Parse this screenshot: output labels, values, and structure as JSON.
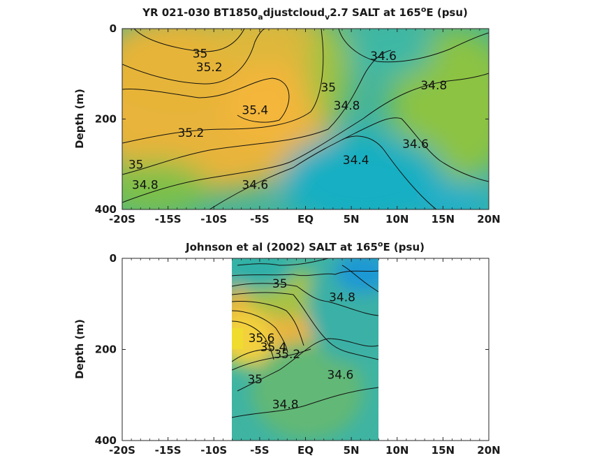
{
  "chart_data": [
    {
      "type": "contour",
      "title_parts": {
        "pre": "YR 021-030 BT1850",
        "sub1": "a",
        "mid": "djustcloud",
        "sub2": "v",
        "post": "2.7 SALT at 165",
        "sup": "o",
        "end": "E (psu)"
      },
      "ylabel": "Depth (m)",
      "x_tick_labels": [
        "-20S",
        "-15S",
        "-10S",
        "-5S",
        "EQ",
        "5N",
        "10N",
        "15N",
        "20N"
      ],
      "x_ticks": [
        -20,
        -15,
        -10,
        -5,
        0,
        5,
        10,
        15,
        20
      ],
      "y_tick_labels": [
        "0",
        "200",
        "400"
      ],
      "y_ticks": [
        0,
        200,
        400
      ],
      "xlim": [
        -20,
        20
      ],
      "ylim": [
        0,
        400
      ],
      "y_reversed": true,
      "data_xlim": [
        -20,
        20
      ],
      "contour_levels": [
        34.4,
        34.6,
        34.8,
        35,
        35.2,
        35.4
      ],
      "contour_labels": [
        {
          "text": "35",
          "x": -11.5,
          "y": 55
        },
        {
          "text": "35.2",
          "x": -10.5,
          "y": 85
        },
        {
          "text": "35.4",
          "x": -5.5,
          "y": 180
        },
        {
          "text": "35.2",
          "x": -12.5,
          "y": 230
        },
        {
          "text": "35",
          "x": -18.5,
          "y": 300
        },
        {
          "text": "34.8",
          "x": -17.5,
          "y": 345
        },
        {
          "text": "34.6",
          "x": -5.5,
          "y": 345
        },
        {
          "text": "35",
          "x": 2.5,
          "y": 130
        },
        {
          "text": "34.8",
          "x": 4.5,
          "y": 170
        },
        {
          "text": "34.6",
          "x": 8.5,
          "y": 60
        },
        {
          "text": "34.8",
          "x": 14,
          "y": 125
        },
        {
          "text": "34.6",
          "x": 12,
          "y": 255
        },
        {
          "text": "34.4",
          "x": 5.5,
          "y": 290
        }
      ]
    },
    {
      "type": "contour",
      "title_parts": {
        "pre": "Johnson et al (2002) SALT at 165",
        "sup": "o",
        "end": "E (psu)"
      },
      "ylabel": "Depth (m)",
      "x_tick_labels": [
        "-20S",
        "-15S",
        "-10S",
        "-5S",
        "EQ",
        "5N",
        "10N",
        "15N",
        "20N"
      ],
      "x_ticks": [
        -20,
        -15,
        -10,
        -5,
        0,
        5,
        10,
        15,
        20
      ],
      "y_tick_labels": [
        "0",
        "200",
        "400"
      ],
      "y_ticks": [
        0,
        200,
        400
      ],
      "xlim": [
        -20,
        20
      ],
      "ylim": [
        0,
        400
      ],
      "y_reversed": true,
      "data_xlim": [
        -8,
        8
      ],
      "contour_levels": [
        34.6,
        34.8,
        35,
        35.2,
        35.4,
        35.6
      ],
      "contour_labels": [
        {
          "text": "35",
          "x": -2.8,
          "y": 55
        },
        {
          "text": "34.8",
          "x": 4.0,
          "y": 85
        },
        {
          "text": "35.6",
          "x": -4.8,
          "y": 175
        },
        {
          "text": "35.4",
          "x": -3.5,
          "y": 195
        },
        {
          "text": "35",
          "x": -5.5,
          "y": 265
        },
        {
          "text": "35.2",
          "x": -2.0,
          "y": 210
        },
        {
          "text": "34.6",
          "x": 3.8,
          "y": 255
        },
        {
          "text": "34.8",
          "x": -2.2,
          "y": 320
        }
      ]
    }
  ]
}
